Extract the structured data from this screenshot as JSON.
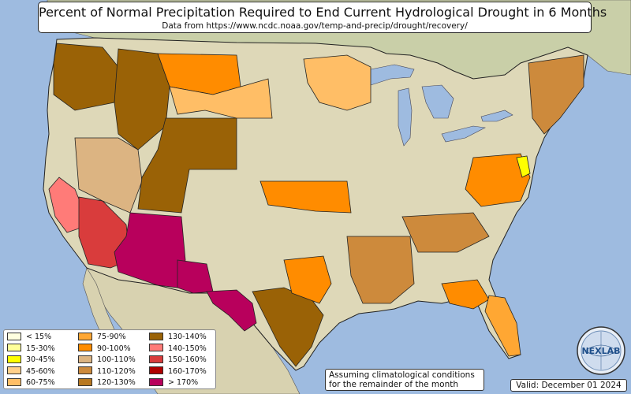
{
  "title": "Percent of Normal Precipitation Required to End Current Hydrological Drought in 6 Months",
  "subtitle": "Data from https://www.ncdc.noaa.gov/temp-and-precip/drought/recovery/",
  "note_line1": "Assuming climatological conditions",
  "note_line2": "for the remainder of the month",
  "valid": "Valid: December 01 2024",
  "logo_text": "NEXLAB",
  "colors": {
    "ocean": "#9ebbe0",
    "land": "#ded8b8",
    "border": "#222222"
  },
  "legend": [
    {
      "label": "< 15%",
      "color": "#ffffe0"
    },
    {
      "label": "15-30%",
      "color": "#ffff9a"
    },
    {
      "label": "30-45%",
      "color": "#ffff00"
    },
    {
      "label": "45-60%",
      "color": "#ffd08a"
    },
    {
      "label": "60-75%",
      "color": "#ffbe66"
    },
    {
      "label": "75-90%",
      "color": "#ffa733"
    },
    {
      "label": "90-100%",
      "color": "#ff8c00"
    },
    {
      "label": "100-110%",
      "color": "#dcb482"
    },
    {
      "label": "110-120%",
      "color": "#cd8a3c"
    },
    {
      "label": "120-130%",
      "color": "#b87820"
    },
    {
      "label": "130-140%",
      "color": "#9a6206"
    },
    {
      "label": "140-150%",
      "color": "#ff7b78"
    },
    {
      "label": "150-160%",
      "color": "#d93c3c"
    },
    {
      "label": "160-170%",
      "color": "#b00000"
    },
    {
      "label": "> 170%",
      "color": "#b8005c"
    }
  ],
  "regions": [
    {
      "name": "pacific-northwest",
      "category": "130-140%"
    },
    {
      "name": "idaho-montana-west",
      "category": "130-140%"
    },
    {
      "name": "montana-east",
      "category": "90-100%"
    },
    {
      "name": "northern-plains",
      "category": "60-75%"
    },
    {
      "name": "minnesota-wisconsin",
      "category": "60-75%"
    },
    {
      "name": "northern-california",
      "category": "140-150%"
    },
    {
      "name": "southern-california",
      "category": "150-160%"
    },
    {
      "name": "arizona",
      "category": "> 170%"
    },
    {
      "name": "new-mexico-west",
      "category": "> 170%"
    },
    {
      "name": "texas-west",
      "category": "> 170%"
    },
    {
      "name": "nevada-utah",
      "category": "100-110%"
    },
    {
      "name": "colorado-rockies",
      "category": "130-140%"
    },
    {
      "name": "kansas-missouri",
      "category": "90-100%"
    },
    {
      "name": "texas-central",
      "category": "130-140%"
    },
    {
      "name": "texas-east",
      "category": "90-100%"
    },
    {
      "name": "lower-mississippi",
      "category": "110-120%"
    },
    {
      "name": "ohio-valley",
      "category": "110-120%"
    },
    {
      "name": "mid-atlantic",
      "category": "90-100%"
    },
    {
      "name": "carolinas",
      "category": "90-100%"
    },
    {
      "name": "new-england",
      "category": "110-120%"
    },
    {
      "name": "florida",
      "category": "75-90%"
    },
    {
      "name": "delmarva",
      "category": "30-45%"
    }
  ]
}
